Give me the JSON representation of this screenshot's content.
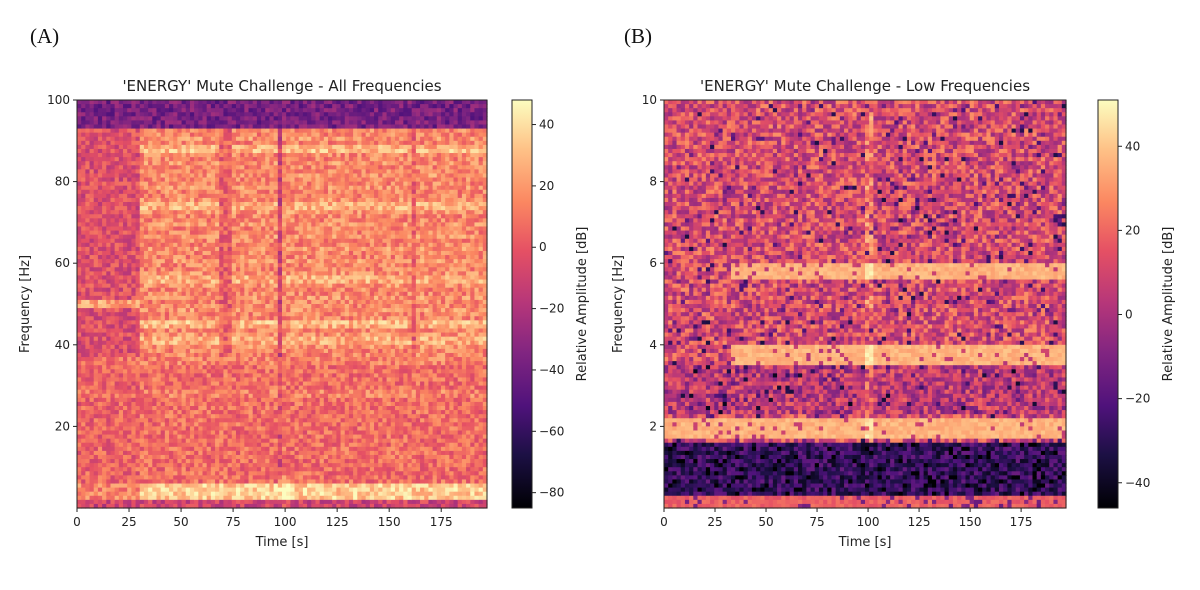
{
  "panel_labels": [
    "(A)",
    "(B)"
  ],
  "chart_data": [
    {
      "type": "heatmap",
      "title": "'ENERGY' Mute Challenge - All Frequencies",
      "xlabel": "Time [s]",
      "ylabel": "Frequency [Hz]",
      "xlim": [
        0,
        197
      ],
      "ylim": [
        0,
        100
      ],
      "xticks": [
        0,
        25,
        50,
        75,
        100,
        125,
        150,
        175
      ],
      "yticks": [
        20,
        40,
        60,
        80,
        100
      ],
      "colorbar": {
        "label": "Relative Amplitude [dB]",
        "range": [
          -85,
          48
        ],
        "ticks": [
          40,
          20,
          0,
          -20,
          -40,
          -60,
          -80
        ],
        "tick_labels": [
          "40",
          "20",
          "0",
          "−20",
          "−40",
          "−60",
          "−80"
        ],
        "colormap": "magma"
      },
      "features": {
        "background_db": 6,
        "top_band": {
          "freq": [
            93,
            100
          ],
          "db": -38
        },
        "quiet_lead_in": {
          "time": [
            0,
            30
          ],
          "freq": [
            37,
            93
          ],
          "db": -4
        },
        "speech_blocks": [
          {
            "time": [
              30,
              68
            ]
          },
          {
            "time": [
              75,
              97
            ]
          },
          {
            "time": [
              98,
              162
            ]
          },
          {
            "time": [
              163,
              197
            ]
          }
        ],
        "mute_gaps": [
          {
            "time": [
              68,
              75
            ]
          },
          {
            "time": [
              97,
              98
            ]
          },
          {
            "time": [
              161,
              163
            ]
          }
        ],
        "line_50hz": {
          "freq": 50,
          "time": [
            0,
            30
          ]
        },
        "low_bands": [
          {
            "freq": 1
          },
          {
            "freq": 3
          },
          {
            "freq": 5
          }
        ]
      }
    },
    {
      "type": "heatmap",
      "title": "'ENERGY' Mute Challenge - Low Frequencies",
      "xlabel": "Time [s]",
      "ylabel": "Frequency [Hz]",
      "xlim": [
        0,
        197
      ],
      "ylim": [
        0,
        10
      ],
      "xticks": [
        0,
        25,
        50,
        75,
        100,
        125,
        150,
        175
      ],
      "yticks": [
        2,
        4,
        6,
        8,
        10
      ],
      "colorbar": {
        "label": "Relative Amplitude [dB]",
        "range": [
          -46,
          51
        ],
        "ticks": [
          40,
          20,
          0,
          -20,
          -40
        ],
        "tick_labels": [
          "40",
          "20",
          "0",
          "−20",
          "−40"
        ],
        "colormap": "magma"
      },
      "features": {
        "background_db": 12,
        "dark_low_band": {
          "freq": [
            0.3,
            1.6
          ],
          "db": -28
        },
        "bright_bands": [
          {
            "freq": 1.95,
            "time": [
              0,
              197
            ]
          },
          {
            "freq": 3.75,
            "time": [
              32,
              197
            ]
          },
          {
            "freq": 5.8,
            "time": [
              32,
              197
            ]
          }
        ],
        "transient": {
          "time": 100
        }
      }
    }
  ]
}
